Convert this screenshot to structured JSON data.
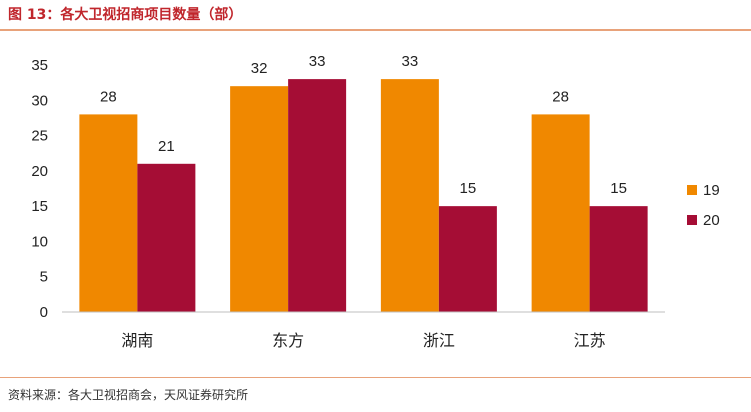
{
  "header": {
    "title": "图 13：各大卫视招商项目数量（部）"
  },
  "footer": {
    "source": "资料来源：各大卫视招商会，天风证券研究所"
  },
  "chart_data": {
    "type": "bar",
    "title": "图 13：各大卫视招商项目数量（部）",
    "xlabel": "",
    "ylabel": "",
    "categories": [
      "湖南",
      "东方",
      "浙江",
      "江苏"
    ],
    "series": [
      {
        "name": "19",
        "values": [
          28,
          32,
          33,
          28
        ],
        "color": "#f08800"
      },
      {
        "name": "20",
        "values": [
          21,
          33,
          15,
          15
        ],
        "color": "#a50d35"
      }
    ],
    "ylim": [
      0,
      35
    ],
    "yticks": [
      0,
      5,
      10,
      15,
      20,
      25,
      30,
      35
    ],
    "grid": false,
    "legend": "right",
    "data_labels": true
  }
}
